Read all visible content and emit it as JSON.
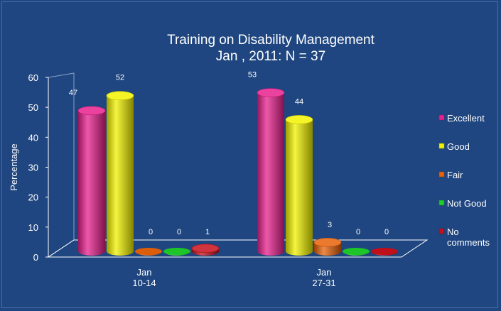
{
  "chart_data": {
    "type": "bar",
    "title": [
      "Training on Disability Management",
      "Jan , 2011: N = 37"
    ],
    "ylabel": "Percentage",
    "xlabel": "",
    "ylim": [
      0,
      60
    ],
    "yticks": [
      0,
      10,
      20,
      30,
      40,
      50,
      60
    ],
    "categories": [
      [
        "Jan",
        "10-14"
      ],
      [
        "Jan",
        "27-31"
      ]
    ],
    "series": [
      {
        "name": "Excellent",
        "values": [
          47,
          53
        ],
        "color": "#e8208e"
      },
      {
        "name": "Good",
        "values": [
          52,
          44
        ],
        "color": "#f2f200"
      },
      {
        "name": "Fair",
        "values": [
          0,
          3
        ],
        "color": "#e8620a"
      },
      {
        "name": "Not Good",
        "values": [
          0,
          0
        ],
        "color": "#1fcf2a"
      },
      {
        "name": "No comments",
        "values": [
          1,
          0
        ],
        "color": "#c8101c"
      }
    ],
    "legend_position": "right",
    "grid": false
  }
}
